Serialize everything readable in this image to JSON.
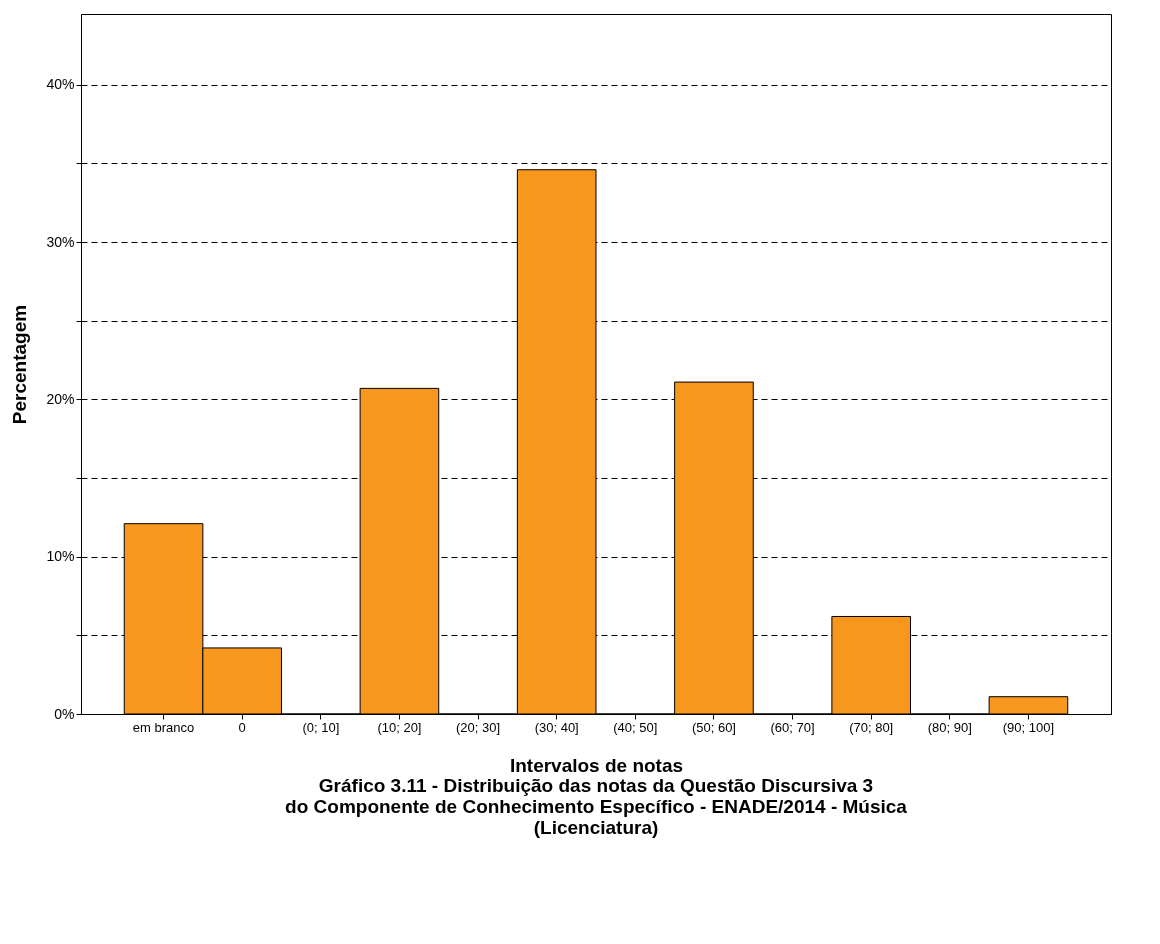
{
  "chart_data": {
    "type": "bar",
    "title": "Gráfico 3.11 - Distribuição das notas da Questão Discursiva 3 do Componente de Conhecimento Específico - ENADE/2014 - Música (Licenciatura)",
    "xlabel": "Intervalos de notas",
    "ylabel": "Percentagem",
    "categories": [
      "em branco",
      "0",
      "(0; 10]",
      "(10; 20]",
      "(20; 30]",
      "(30; 40]",
      "(40; 50]",
      "(50; 60]",
      "(60; 70]",
      "(70; 80]",
      "(80; 90]",
      "(90; 100]"
    ],
    "values": [
      12.1,
      4.2,
      0,
      20.7,
      0,
      34.6,
      0,
      21.1,
      0,
      6.2,
      0,
      1.1
    ],
    "color": "#f7971e",
    "ylim": [
      0,
      44.5
    ],
    "yticks": [
      {
        "value": 0,
        "label": "0%"
      },
      {
        "value": 5,
        "label": null
      },
      {
        "value": 10,
        "label": "10%"
      },
      {
        "value": 15,
        "label": null
      },
      {
        "value": 20,
        "label": "20%"
      },
      {
        "value": 25,
        "label": null
      },
      {
        "value": 30,
        "label": "30%"
      },
      {
        "value": 35,
        "label": null
      },
      {
        "value": 40,
        "label": "40%"
      }
    ],
    "grid": "y"
  }
}
